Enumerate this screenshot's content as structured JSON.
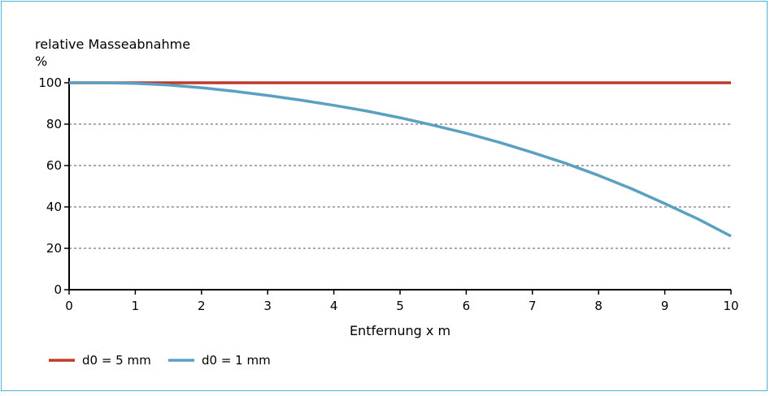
{
  "chart_data": {
    "type": "line",
    "ylabel_line1": "relative Masseabnahme",
    "ylabel_line2": "%",
    "xlabel": "Entfernung x m",
    "xlim": [
      0,
      10
    ],
    "ylim": [
      0,
      100
    ],
    "x_ticks": [
      "0",
      "1",
      "2",
      "3",
      "4",
      "5",
      "6",
      "7",
      "8",
      "9",
      "10"
    ],
    "y_ticks": [
      "0",
      "20",
      "40",
      "60",
      "80",
      "100"
    ],
    "grid": "horizontal dashed",
    "legend_position": "bottom-left",
    "series": [
      {
        "name": "d0 = 5 mm",
        "color": "#c0392b",
        "x": [
          0,
          1,
          2,
          3,
          4,
          5,
          6,
          7,
          8,
          9,
          10
        ],
        "y": [
          100,
          100,
          100,
          100,
          100,
          100,
          100,
          100,
          100,
          100,
          100
        ]
      },
      {
        "name": "d0 = 1 mm",
        "color": "#5aa0c0",
        "x": [
          0,
          0.5,
          1,
          1.5,
          2,
          2.5,
          3,
          3.5,
          4,
          4.5,
          5,
          5.5,
          6,
          6.5,
          7,
          7.5,
          8,
          8.5,
          9,
          9.5,
          10
        ],
        "y": [
          100,
          100,
          99.7,
          98.9,
          97.6,
          95.9,
          93.9,
          91.6,
          89.1,
          86.3,
          83.1,
          79.5,
          75.6,
          71.2,
          66.3,
          61.1,
          55.2,
          48.8,
          41.6,
          34.2,
          25.9
        ]
      }
    ]
  }
}
